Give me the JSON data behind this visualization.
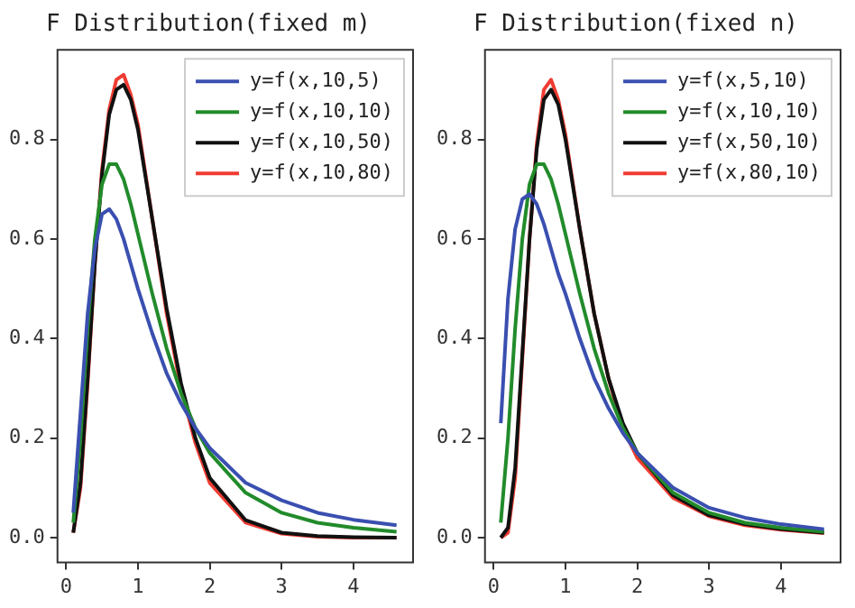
{
  "chart_data": [
    {
      "type": "line",
      "title": "F Distribution(fixed m)",
      "legend": "top right",
      "x": [
        0.1,
        0.2,
        0.3,
        0.4,
        0.5,
        0.6,
        0.7,
        0.8,
        0.9,
        1.0,
        1.2,
        1.4,
        1.6,
        1.8,
        2.0,
        2.5,
        3.0,
        3.5,
        4.0,
        4.6
      ],
      "xlim": [
        -0.12,
        4.83
      ],
      "ylim": [
        -0.05,
        0.98
      ],
      "xticks": [
        0,
        1,
        2,
        3,
        4
      ],
      "yticks": [
        {
          "value": 0,
          "label": "0.0"
        },
        {
          "value": 0.2,
          "label": "0.2"
        },
        {
          "value": 0.4,
          "label": "0.4"
        },
        {
          "value": 0.6,
          "label": "0.6"
        },
        {
          "value": 0.8,
          "label": "0.8"
        }
      ],
      "series": [
        {
          "name": "y=f(x,10,5)",
          "color": "#3a4fb0",
          "values": [
            0.05,
            0.25,
            0.45,
            0.58,
            0.65,
            0.66,
            0.64,
            0.6,
            0.55,
            0.5,
            0.41,
            0.33,
            0.27,
            0.22,
            0.18,
            0.11,
            0.075,
            0.05,
            0.036,
            0.025
          ]
        },
        {
          "name": "y=f(x,10,10)",
          "color": "#228b2b",
          "values": [
            0.03,
            0.2,
            0.42,
            0.6,
            0.71,
            0.75,
            0.75,
            0.72,
            0.67,
            0.61,
            0.49,
            0.38,
            0.29,
            0.22,
            0.17,
            0.09,
            0.05,
            0.03,
            0.02,
            0.012
          ]
        },
        {
          "name": "y=f(x,10,50)",
          "color": "#111111",
          "values": [
            0.01,
            0.11,
            0.32,
            0.55,
            0.73,
            0.85,
            0.9,
            0.91,
            0.88,
            0.82,
            0.64,
            0.46,
            0.31,
            0.2,
            0.12,
            0.035,
            0.01,
            0.003,
            0.001,
            0
          ]
        },
        {
          "name": "y=f(x,10,80)",
          "color": "#f03c32",
          "values": [
            0.01,
            0.1,
            0.31,
            0.55,
            0.74,
            0.86,
            0.92,
            0.93,
            0.89,
            0.83,
            0.64,
            0.45,
            0.3,
            0.19,
            0.11,
            0.03,
            0.008,
            0.002,
            0,
            0
          ]
        }
      ]
    },
    {
      "type": "line",
      "title": "F Distribution(fixed n)",
      "legend": "top right",
      "x": [
        0.1,
        0.2,
        0.3,
        0.4,
        0.5,
        0.6,
        0.7,
        0.8,
        0.9,
        1.0,
        1.2,
        1.4,
        1.6,
        1.8,
        2.0,
        2.5,
        3.0,
        3.5,
        4.0,
        4.6
      ],
      "xlim": [
        -0.12,
        4.83
      ],
      "ylim": [
        -0.05,
        0.98
      ],
      "xticks": [
        0,
        1,
        2,
        3,
        4
      ],
      "yticks": [
        {
          "value": 0,
          "label": "0.0"
        },
        {
          "value": 0.2,
          "label": "0.2"
        },
        {
          "value": 0.4,
          "label": "0.4"
        },
        {
          "value": 0.6,
          "label": "0.6"
        },
        {
          "value": 0.8,
          "label": "0.8"
        }
      ],
      "series": [
        {
          "name": "y=f(x,5,10)",
          "color": "#3a4fb0",
          "values": [
            0.23,
            0.48,
            0.62,
            0.68,
            0.69,
            0.67,
            0.63,
            0.58,
            0.53,
            0.49,
            0.4,
            0.32,
            0.26,
            0.21,
            0.17,
            0.1,
            0.06,
            0.04,
            0.027,
            0.017
          ]
        },
        {
          "name": "y=f(x,10,10)",
          "color": "#228b2b",
          "values": [
            0.03,
            0.2,
            0.42,
            0.6,
            0.71,
            0.75,
            0.75,
            0.72,
            0.67,
            0.61,
            0.49,
            0.38,
            0.29,
            0.22,
            0.17,
            0.09,
            0.05,
            0.03,
            0.02,
            0.012
          ]
        },
        {
          "name": "y=f(x,50,10)",
          "color": "#111111",
          "values": [
            0,
            0.02,
            0.14,
            0.37,
            0.6,
            0.78,
            0.88,
            0.9,
            0.87,
            0.8,
            0.62,
            0.45,
            0.32,
            0.23,
            0.17,
            0.085,
            0.045,
            0.027,
            0.017,
            0.01
          ]
        },
        {
          "name": "y=f(x,80,10)",
          "color": "#f03c32",
          "values": [
            0,
            0.01,
            0.12,
            0.36,
            0.6,
            0.79,
            0.9,
            0.92,
            0.88,
            0.81,
            0.62,
            0.45,
            0.32,
            0.22,
            0.16,
            0.08,
            0.043,
            0.025,
            0.016,
            0.009
          ]
        }
      ]
    }
  ]
}
